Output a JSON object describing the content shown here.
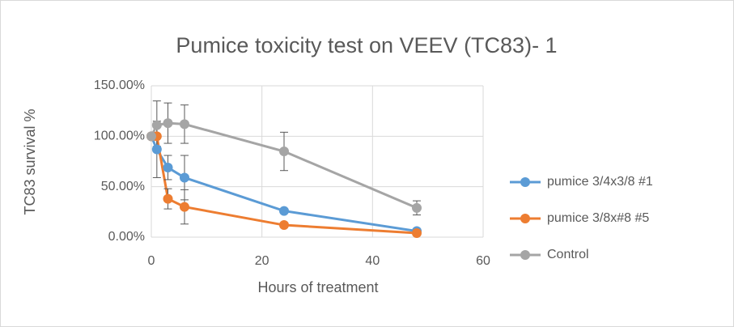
{
  "chart_data": {
    "type": "scatter-line",
    "title": "Pumice toxicity test on VEEV (TC83)- 1",
    "x_label": "Hours of treatment",
    "y_label": "TC83 survival %",
    "x": [
      0,
      1,
      3,
      6,
      24,
      48
    ],
    "series": [
      {
        "name": "pumice 3/4x3/8 #1",
        "color": "#5b9bd5",
        "values": [
          100,
          87,
          69,
          59,
          26,
          6
        ],
        "errors": [
          0,
          28,
          12,
          22,
          0,
          0
        ]
      },
      {
        "name": "pumice 3/8x#8 #5",
        "color": "#ed7d31",
        "values": [
          100,
          100,
          38,
          30,
          12,
          4
        ],
        "errors": [
          0,
          10,
          10,
          17,
          0,
          0
        ]
      },
      {
        "name": "Control",
        "color": "#a5a5a5",
        "values": [
          100,
          111,
          113,
          112,
          85,
          29
        ],
        "errors": [
          0,
          24,
          20,
          19,
          19,
          7
        ]
      }
    ],
    "xlim": [
      0,
      60
    ],
    "xticks": [
      0,
      20,
      40,
      60
    ],
    "ylim": [
      0,
      150
    ],
    "yticks": [
      {
        "value": 0,
        "label": "0.00%"
      },
      {
        "value": 50,
        "label": "50.00%"
      },
      {
        "value": 100,
        "label": "100.00%"
      },
      {
        "value": 150,
        "label": "150.00%"
      }
    ],
    "grid": true,
    "legend": "right"
  }
}
